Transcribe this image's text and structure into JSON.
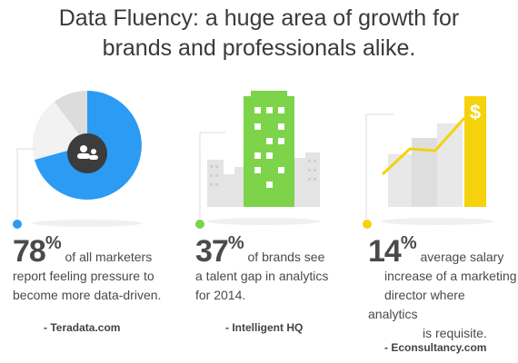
{
  "title_line1": "Data Fluency: a huge area of growth for",
  "title_line2": "brands and professionals alike.",
  "colors": {
    "blue": "#2b9bf4",
    "green": "#7dd34a",
    "yellow": "#f5d20c",
    "gray": "#d9d9d9"
  },
  "stats": [
    {
      "number": "78",
      "percent": "%",
      "text_inline": "of all marketers",
      "text_line2": "report feeling pressure to",
      "text_line3": "become more data-driven.",
      "source": "- Teradata.com",
      "icon": "people-icon"
    },
    {
      "number": "37",
      "percent": "%",
      "text_inline": "of brands see",
      "text_line2": "a talent gap in analytics",
      "text_line3": "for 2014.",
      "source": "- Intelligent HQ",
      "icon": "building-icon"
    },
    {
      "number": "14",
      "percent": "%",
      "text_inline": "average salary",
      "text_line2": "increase of a marketing",
      "text_line3": "director where analytics",
      "text_line4": "is requisite.",
      "source": "- Econsultancy.com",
      "icon": "dollar-icon",
      "badge": "$"
    }
  ]
}
